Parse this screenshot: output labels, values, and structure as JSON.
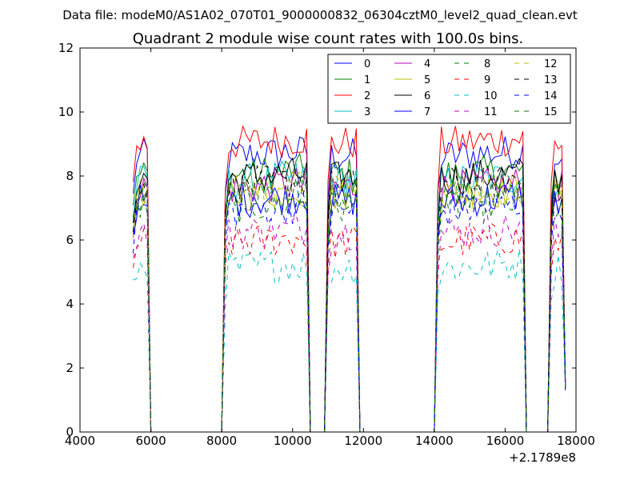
{
  "figure": {
    "suptitle": "Data file: modeM0/AS1A02_070T01_9000000832_06304cztM0_level2_quad_clean.evt"
  },
  "chart_data": {
    "type": "line",
    "title": "Quadrant 2 module wise count rates with 100.0s bins.",
    "xlabel": "",
    "ylabel": "",
    "x_offset_label": "+2.1789e8",
    "xlim": [
      4000,
      18000
    ],
    "ylim": [
      0,
      12
    ],
    "xticks": [
      "4000",
      "6000",
      "8000",
      "10000",
      "12000",
      "14000",
      "16000",
      "18000"
    ],
    "yticks": [
      "0",
      "2",
      "4",
      "6",
      "8",
      "10",
      "12"
    ],
    "grid": false,
    "legend_position": "top-right",
    "legend_columns": 4,
    "segments": [
      {
        "start": 5500,
        "end": 5900
      },
      {
        "start": 8100,
        "end": 10400
      },
      {
        "start": 11000,
        "end": 11800
      },
      {
        "start": 14100,
        "end": 16500
      },
      {
        "start": 17300,
        "end": 17600
      }
    ],
    "gaps_zero_until": 17700,
    "series": [
      {
        "name": "0",
        "color": "#0000ff",
        "dash": "solid",
        "level": 8.6
      },
      {
        "name": "1",
        "color": "#008000",
        "dash": "solid",
        "level": 8.0
      },
      {
        "name": "2",
        "color": "#ff0000",
        "dash": "solid",
        "level": 9.0
      },
      {
        "name": "3",
        "color": "#00bfbf",
        "dash": "solid",
        "level": 7.8
      },
      {
        "name": "4",
        "color": "#bf00bf",
        "dash": "solid",
        "level": 7.6
      },
      {
        "name": "5",
        "color": "#bfbf00",
        "dash": "solid",
        "level": 7.4
      },
      {
        "name": "6",
        "color": "#000000",
        "dash": "solid",
        "level": 7.9
      },
      {
        "name": "7",
        "color": "#0000ff",
        "dash": "solid",
        "level": 7.2
      },
      {
        "name": "8",
        "color": "#008000",
        "dash": "dashed",
        "level": 7.0
      },
      {
        "name": "9",
        "color": "#ff0000",
        "dash": "dashed",
        "level": 5.9
      },
      {
        "name": "10",
        "color": "#00bfbf",
        "dash": "dashed",
        "level": 5.1
      },
      {
        "name": "11",
        "color": "#bf00bf",
        "dash": "dashed",
        "level": 6.2
      },
      {
        "name": "12",
        "color": "#bfbf00",
        "dash": "dashed",
        "level": 7.5
      },
      {
        "name": "13",
        "color": "#000000",
        "dash": "dashed",
        "level": 7.7
      },
      {
        "name": "14",
        "color": "#0000ff",
        "dash": "dashed",
        "level": 6.9
      },
      {
        "name": "15",
        "color": "#008000",
        "dash": "dashed",
        "level": 7.4
      }
    ]
  }
}
